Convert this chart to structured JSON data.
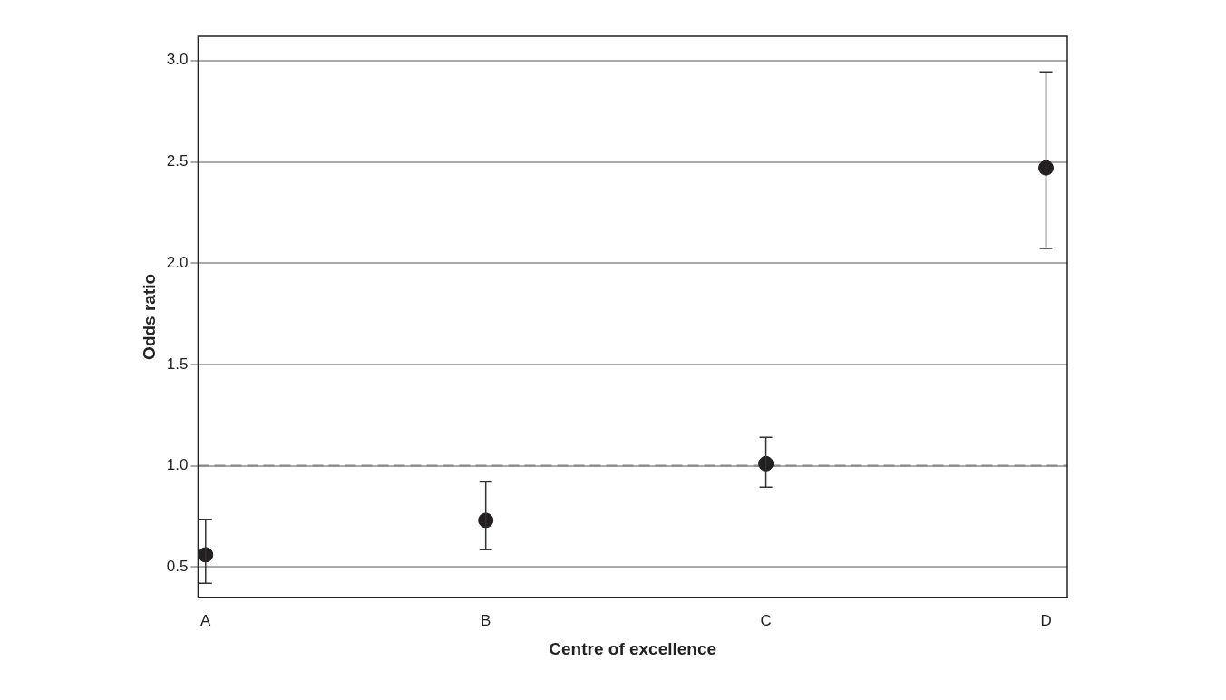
{
  "chart_data": {
    "type": "scatter",
    "xlabel": "Centre of excellence",
    "ylabel": "Odds ratio",
    "categories": [
      "A",
      "B",
      "C",
      "D"
    ],
    "series": [
      {
        "color": "#231f20",
        "values": [
          0.56,
          0.73,
          1.01,
          2.47
        ],
        "errors": [
          [
            0.42,
            0.735
          ],
          [
            0.585,
            0.92
          ],
          [
            0.894,
            1.14
          ],
          [
            2.073,
            2.944
          ]
        ]
      }
    ],
    "ylim": [
      0.35,
      3.12
    ],
    "yticks": [
      0.5,
      {
        "value": 1,
        "label": "1.0"
      },
      1.5,
      {
        "value": 2,
        "label": "2.0"
      },
      2.5,
      {
        "value": 3,
        "label": "3.0"
      }
    ],
    "grid": "y",
    "marker": "circle",
    "legend": false,
    "ref_lines": [
      {
        "axis": "y",
        "value": 1.0,
        "color": "#888888",
        "line_style": "dashed"
      }
    ]
  }
}
